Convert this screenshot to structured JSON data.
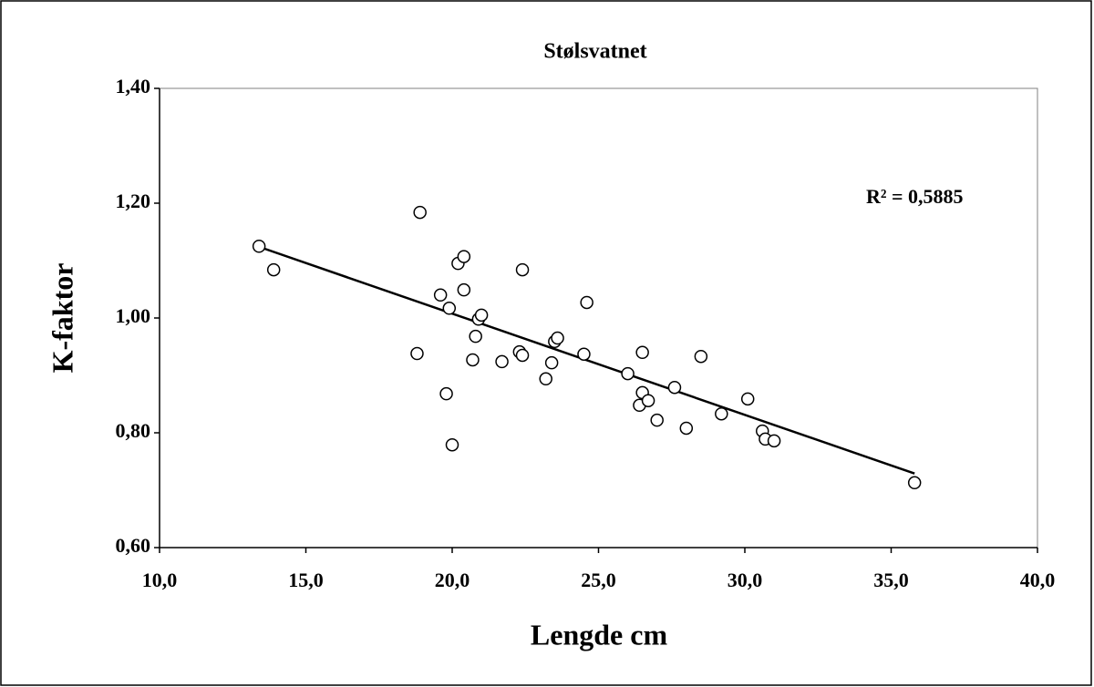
{
  "chart_data": {
    "type": "scatter",
    "title": "Stølsvatnet",
    "x_label": "Lengde cm",
    "y_label": "K-faktor",
    "annotation": "R² = 0,5885",
    "x": [
      13.4,
      13.9,
      18.9,
      18.8,
      19.6,
      19.8,
      19.9,
      20.0,
      20.2,
      20.4,
      20.4,
      20.7,
      20.8,
      20.9,
      21.0,
      21.7,
      22.3,
      22.4,
      22.4,
      23.2,
      23.4,
      23.5,
      23.6,
      24.5,
      24.6,
      26.0,
      26.4,
      26.5,
      26.5,
      26.7,
      27.0,
      27.6,
      28.0,
      28.5,
      29.2,
      30.1,
      30.6,
      30.7,
      31.0,
      35.8
    ],
    "values": [
      1.125,
      1.084,
      1.184,
      0.938,
      1.04,
      0.868,
      1.017,
      0.779,
      1.095,
      1.107,
      1.049,
      0.927,
      0.968,
      0.998,
      1.005,
      0.924,
      0.941,
      0.935,
      1.084,
      0.894,
      0.922,
      0.959,
      0.965,
      0.937,
      1.027,
      0.903,
      0.848,
      0.94,
      0.87,
      0.856,
      0.822,
      0.879,
      0.808,
      0.933,
      0.833,
      0.859,
      0.803,
      0.789,
      0.786,
      0.713
    ],
    "color": "#000000",
    "trendline": {
      "x": [
        13.4,
        35.8
      ],
      "values": [
        1.124,
        0.729
      ]
    },
    "xlim": [
      10,
      40
    ],
    "xticks": [
      {
        "value": 10,
        "label": "10,0"
      },
      {
        "value": 15,
        "label": "15,0"
      },
      {
        "value": 20,
        "label": "20,0"
      },
      {
        "value": 25,
        "label": "25,0"
      },
      {
        "value": 30,
        "label": "30,0"
      },
      {
        "value": 35,
        "label": "35,0"
      },
      {
        "value": 40,
        "label": "40,0"
      }
    ],
    "ylim": [
      0.6,
      1.4
    ],
    "yticks": [
      {
        "value": 0.6,
        "label": "0,60"
      },
      {
        "value": 0.8,
        "label": "0,80"
      },
      {
        "value": 1.0,
        "label": "1,00"
      },
      {
        "value": 1.2,
        "label": "1,20"
      },
      {
        "value": 1.4,
        "label": "1,40"
      }
    ],
    "grid": false
  }
}
